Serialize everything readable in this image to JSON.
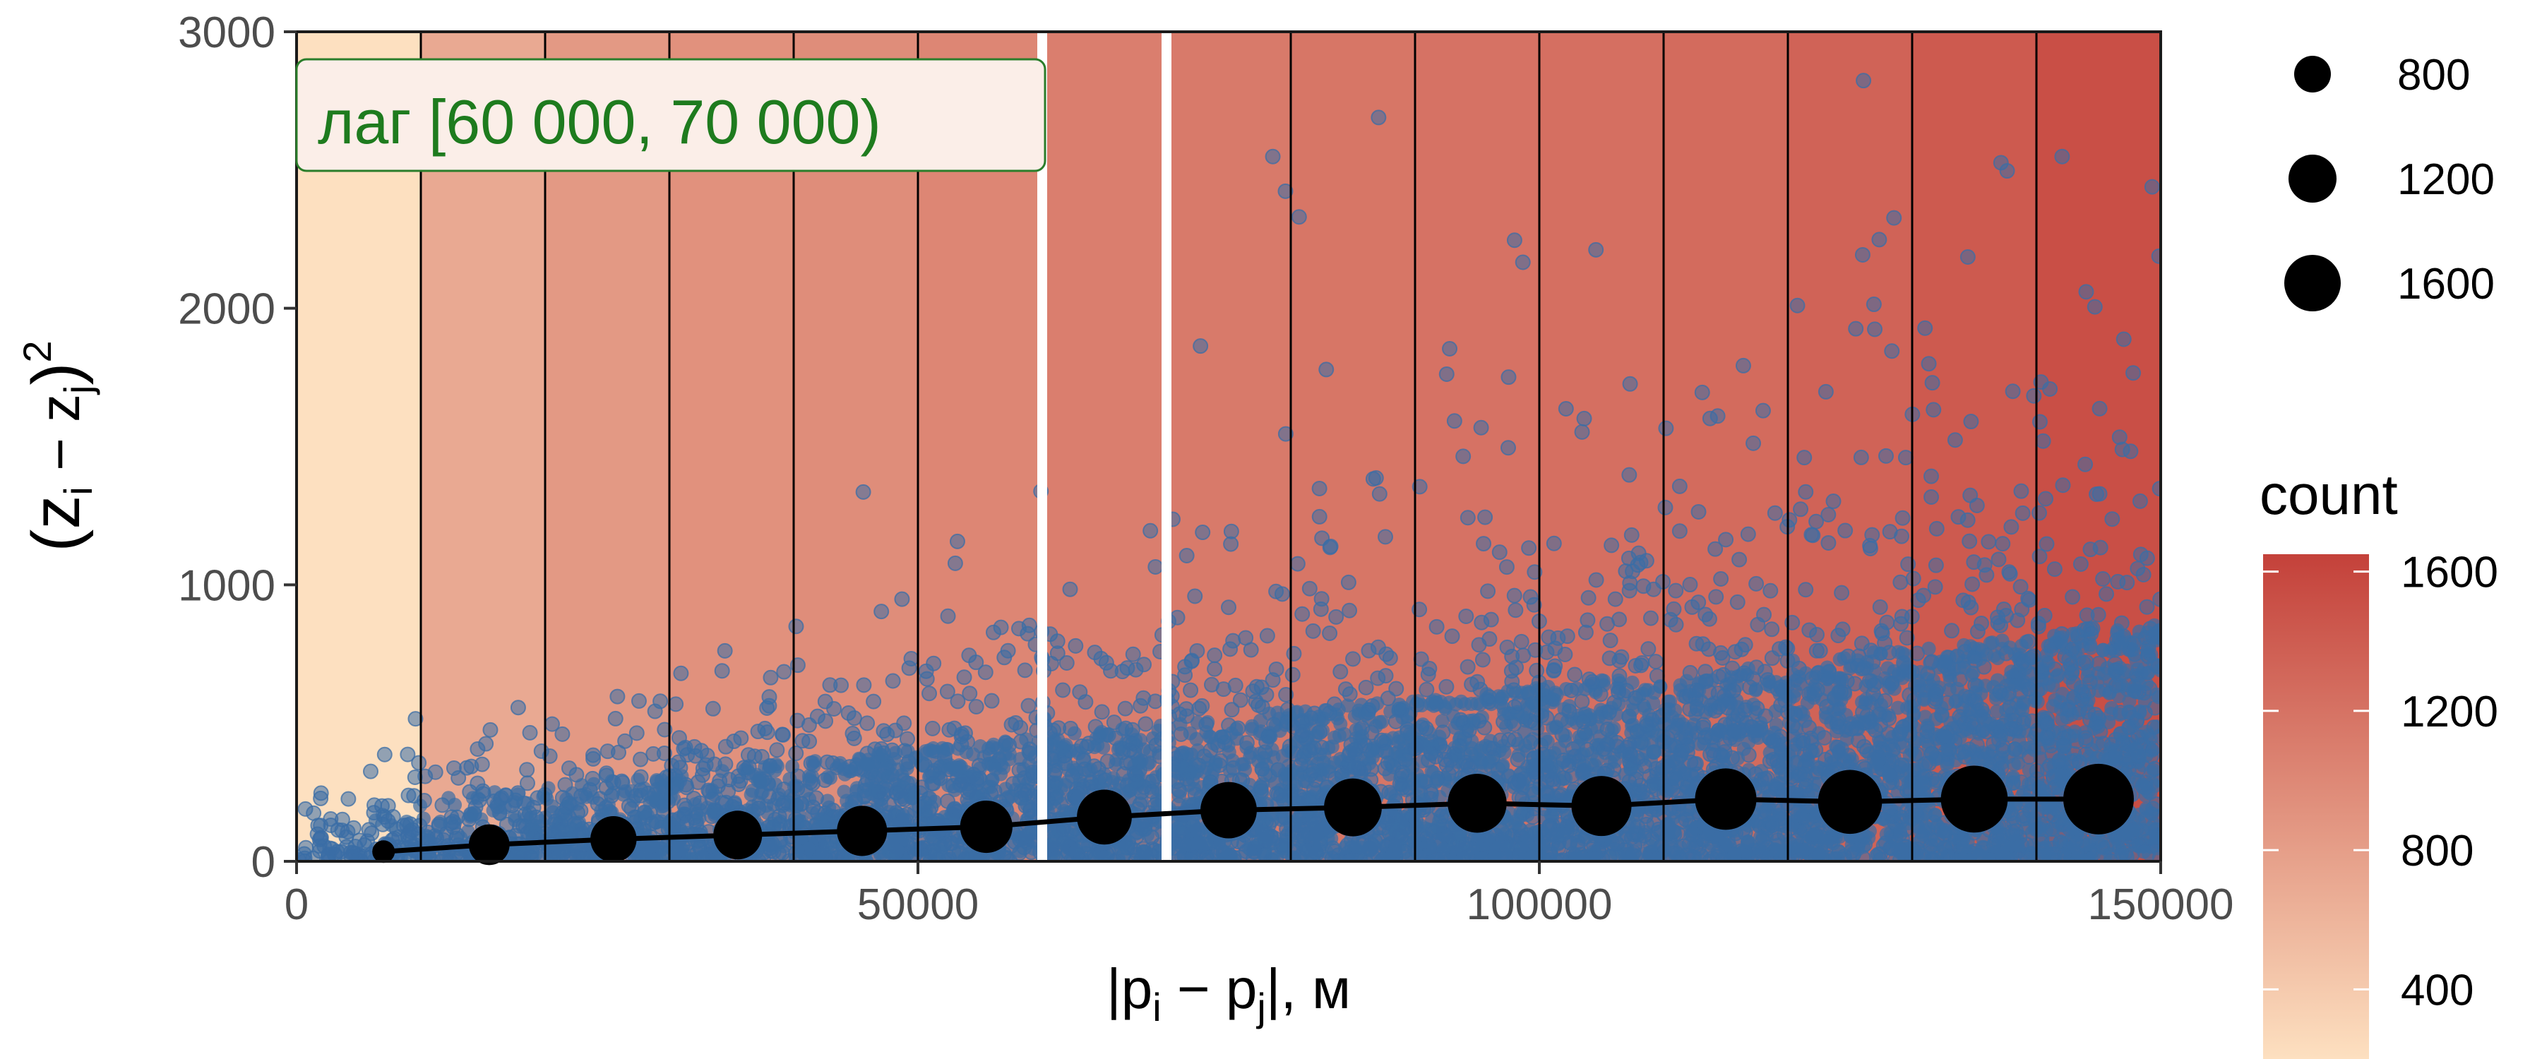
{
  "chart_data": {
    "type": "scatter",
    "annotation": "лаг [60 000, 70 000)",
    "xlabel": {
      "main": "|p",
      "sub_i": "i",
      "minus": " − p",
      "sub_j": "j",
      "tail": "|, м"
    },
    "ylabel": {
      "open": "(z",
      "sub_i": "i",
      "minus": " − z",
      "sub_j": "j",
      "close": ")",
      "sup": "2"
    },
    "xlim": [
      0,
      150000
    ],
    "ylim": [
      0,
      3000
    ],
    "x_ticks": [
      0,
      50000,
      100000,
      150000
    ],
    "x_tick_labels": [
      "0",
      "50000",
      "100000",
      "150000"
    ],
    "y_ticks": [
      0,
      1000,
      2000,
      3000
    ],
    "y_tick_labels": [
      "0",
      "1000",
      "2000",
      "3000"
    ],
    "lag_width": 10000,
    "highlight_lag": [
      60000,
      70000
    ],
    "lag_counts": [
      200,
      700,
      850,
      920,
      960,
      1020,
      1090,
      1130,
      1170,
      1200,
      1230,
      1270,
      1340,
      1420,
      1520
    ],
    "count_range": [
      200,
      1650
    ],
    "color_low": "#fde0c0",
    "color_high": "#c4413a",
    "point_color": "#3b6ea5",
    "line_color": "#000000",
    "highlight_color": "#ffffff",
    "annotation_color": "#1e7b1e",
    "variogram": {
      "x": [
        7000,
        15500,
        25500,
        35500,
        45500,
        55500,
        65000,
        75000,
        85000,
        95000,
        105000,
        115000,
        125000,
        135000,
        145000
      ],
      "y": [
        35,
        60,
        80,
        95,
        110,
        125,
        160,
        185,
        195,
        210,
        200,
        225,
        215,
        225,
        225
      ],
      "counts": [
        200,
        700,
        850,
        920,
        960,
        1020,
        1090,
        1130,
        1170,
        1200,
        1230,
        1270,
        1340,
        1420,
        1520
      ]
    },
    "size_legend": {
      "values": [
        800,
        1200,
        1600
      ],
      "labels": [
        "800",
        "1200",
        "1600"
      ]
    },
    "color_legend": {
      "title": "count",
      "ticks": [
        400,
        800,
        1200,
        1600
      ],
      "tick_labels": [
        "400",
        "800",
        "1200",
        "1600"
      ]
    }
  }
}
